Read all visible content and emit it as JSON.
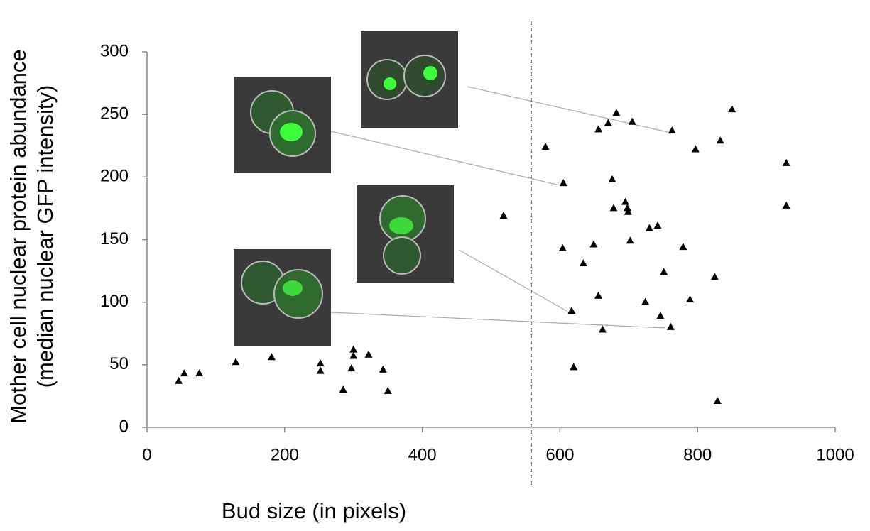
{
  "chart_data": {
    "type": "scatter",
    "xlabel": "Bud size (in pixels)",
    "ylabel": [
      "Mother cell nuclear protein abundance",
      "(median nuclear GFP intensity)"
    ],
    "xlim": [
      0,
      1000
    ],
    "ylim": [
      0,
      300
    ],
    "xticks": [
      0,
      200,
      400,
      600,
      800,
      1000
    ],
    "yticks": [
      0,
      50,
      100,
      150,
      200,
      250,
      300
    ],
    "vline": 558,
    "color": "#000000",
    "x": [
      46,
      54,
      76,
      129,
      181,
      252,
      252,
      297,
      300,
      300,
      322,
      285,
      343,
      350,
      518,
      579,
      605,
      604,
      617,
      620,
      634,
      649,
      656,
      662,
      656,
      670,
      682,
      705,
      676,
      678,
      695,
      698,
      699,
      702,
      730,
      742,
      724,
      746,
      751,
      761,
      779,
      763,
      797,
      789,
      833,
      850,
      825,
      829,
      929,
      929
    ],
    "y": [
      37,
      43,
      43,
      52,
      56,
      51,
      45,
      47,
      62,
      57,
      58,
      30,
      46,
      29,
      169,
      224,
      195,
      143,
      93,
      48,
      131,
      146,
      105,
      78,
      238,
      243,
      251,
      244,
      198,
      175,
      180,
      175,
      172,
      149,
      159,
      161,
      100,
      89,
      124,
      80,
      144,
      237,
      222,
      102,
      229,
      254,
      120,
      21,
      211,
      177
    ]
  }
}
